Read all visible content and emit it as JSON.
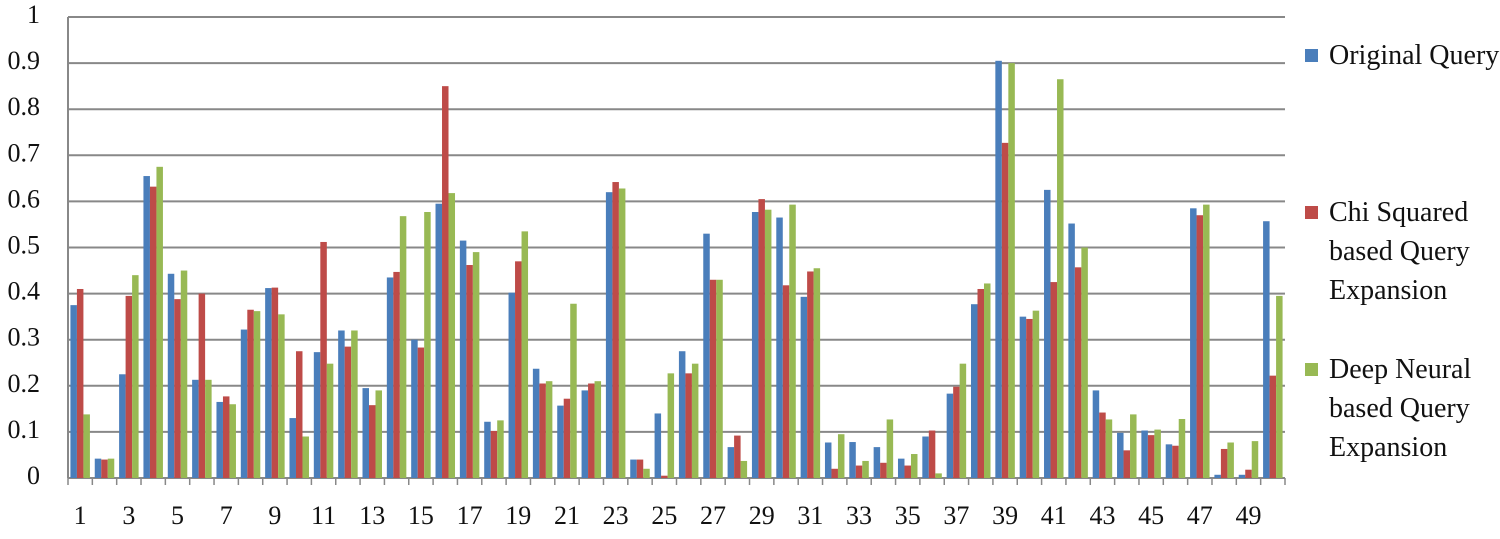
{
  "chart_data": {
    "type": "bar",
    "categories": [
      "1",
      null,
      "3",
      null,
      "5",
      null,
      "7",
      null,
      "9",
      null,
      "11",
      null,
      "13",
      null,
      "15",
      null,
      "17",
      null,
      "19",
      null,
      "21",
      null,
      "23",
      null,
      "25",
      null,
      "27",
      null,
      "29",
      null,
      "31",
      null,
      "33",
      null,
      "35",
      null,
      "37",
      null,
      "39",
      null,
      "41",
      null,
      "43",
      null,
      "45",
      null,
      "47",
      null,
      "49",
      null
    ],
    "series": [
      {
        "name": "Original Query",
        "color": "#4a7ebb",
        "values": [
          0.375,
          0.042,
          0.225,
          0.655,
          0.443,
          0.213,
          0.165,
          0.322,
          0.412,
          0.13,
          0.273,
          0.32,
          0.195,
          0.435,
          0.3,
          0.595,
          0.515,
          0.122,
          0.402,
          0.237,
          0.157,
          0.19,
          0.62,
          0.04,
          0.14,
          0.275,
          0.53,
          0.067,
          0.577,
          0.565,
          0.393,
          0.077,
          0.078,
          0.067,
          0.042,
          0.09,
          0.183,
          0.377,
          0.905,
          0.35,
          0.625,
          0.552,
          0.19,
          0.098,
          0.103,
          0.073,
          0.585,
          0.007,
          0.007,
          0.557
        ]
      },
      {
        "name": "Chi Squared based Query Expansion",
        "color": "#be4b48",
        "values": [
          0.41,
          0.04,
          0.395,
          0.632,
          0.388,
          0.4,
          0.177,
          0.365,
          0.413,
          0.275,
          0.512,
          0.285,
          0.158,
          0.447,
          0.283,
          0.85,
          0.462,
          0.102,
          0.47,
          0.205,
          0.172,
          0.205,
          0.642,
          0.04,
          0.005,
          0.227,
          0.43,
          0.092,
          0.605,
          0.418,
          0.448,
          0.02,
          0.027,
          0.033,
          0.027,
          0.103,
          0.198,
          0.41,
          0.727,
          0.345,
          0.425,
          0.457,
          0.142,
          0.06,
          0.093,
          0.07,
          0.57,
          0.063,
          0.018,
          0.222
        ]
      },
      {
        "name": "Deep Neural based Query Expansion",
        "color": "#98b954",
        "values": [
          0.138,
          0.042,
          0.44,
          0.675,
          0.45,
          0.213,
          0.16,
          0.362,
          0.355,
          0.09,
          0.248,
          0.32,
          0.19,
          0.568,
          0.577,
          0.618,
          0.49,
          0.125,
          0.535,
          0.21,
          0.378,
          0.21,
          0.628,
          0.02,
          0.227,
          0.248,
          0.43,
          0.037,
          0.582,
          0.593,
          0.455,
          0.095,
          0.037,
          0.127,
          0.052,
          0.01,
          0.248,
          0.422,
          0.9,
          0.363,
          0.865,
          0.5,
          0.127,
          0.138,
          0.105,
          0.128,
          0.593,
          0.077,
          0.08,
          0.395
        ]
      }
    ],
    "ylim": [
      0,
      1
    ],
    "yticks": [
      0,
      0.1,
      0.2,
      0.3,
      0.4,
      0.5,
      0.6,
      0.7,
      0.8,
      0.9,
      1
    ],
    "grid": true,
    "legend": "right"
  }
}
